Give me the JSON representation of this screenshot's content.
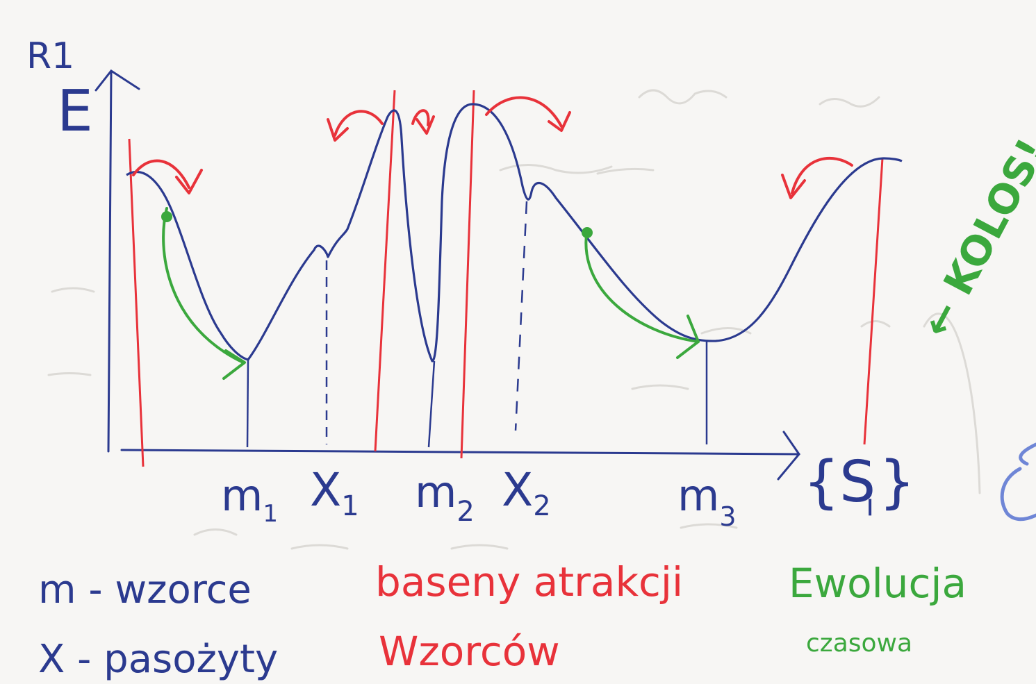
{
  "corner_label": "R1",
  "axis": {
    "y_label": "E",
    "x_label": "{S",
    "x_label_sub": "i",
    "x_label_close": "}"
  },
  "points": [
    {
      "main": "m",
      "sub": "1"
    },
    {
      "main": "X",
      "sub": "1"
    },
    {
      "main": "m",
      "sub": "2"
    },
    {
      "main": "X",
      "sub": "2"
    },
    {
      "main": "m",
      "sub": "3"
    }
  ],
  "legend": {
    "patterns": "m - wzorce",
    "parasites": "X - pasożyty",
    "basins_line1": "baseny atrakcji",
    "basins_line2": "Wzorców",
    "evolution_line1": "Ewolucja",
    "evolution_line2": "czasowa"
  },
  "side_note": "← KOLOS!",
  "colors": {
    "blue_ink": "#2b3a8f",
    "red_ink": "#e8323a",
    "green_ink": "#3ba83d",
    "paper": "#f7f6f4"
  }
}
